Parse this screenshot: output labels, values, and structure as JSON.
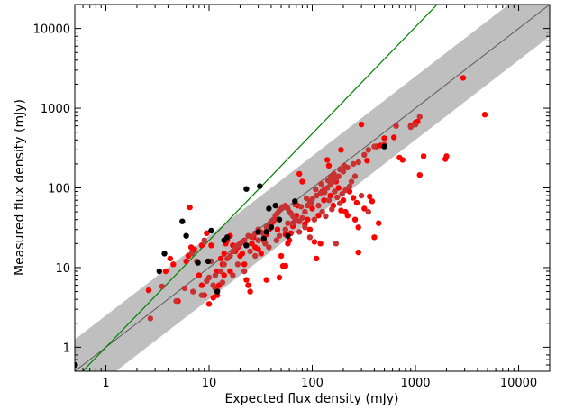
{
  "chart_data": {
    "type": "scatter",
    "title": "",
    "xlabel": "Expected flux density (mJy)",
    "ylabel": "Measured flux density (mJy)",
    "xscale": "log",
    "yscale": "log",
    "xlim": [
      0.5,
      20000
    ],
    "ylim": [
      0.5,
      20000
    ],
    "x_ticks": [
      {
        "value": 1,
        "label": "1"
      },
      {
        "value": 10,
        "label": "10"
      },
      {
        "value": 100,
        "label": "100"
      },
      {
        "value": 1000,
        "label": "1000"
      },
      {
        "value": 10000,
        "label": "10000"
      }
    ],
    "y_ticks": [
      {
        "value": 1,
        "label": "1"
      },
      {
        "value": 10,
        "label": "10"
      },
      {
        "value": 100,
        "label": "100"
      },
      {
        "value": 1000,
        "label": "1000"
      },
      {
        "value": 10000,
        "label": "10000"
      }
    ],
    "grid": false,
    "legend": "none",
    "band": {
      "lower_factor": 0.4,
      "upper_factor": 2.5,
      "color": "#bfbfbf"
    },
    "reference_lines": [
      {
        "slope": 1.0,
        "color": "#5a5a5a"
      },
      {
        "slope": 1.34,
        "color": "#008000"
      }
    ],
    "series": [
      {
        "color": "#ff0000",
        "points": [
          [
            2.6,
            5.2
          ],
          [
            3.8,
            9
          ],
          [
            4.2,
            13
          ],
          [
            4.5,
            11
          ],
          [
            5.0,
            3.8
          ],
          [
            6.0,
            12
          ],
          [
            6.3,
            14
          ],
          [
            6.5,
            57
          ],
          [
            6.7,
            18
          ],
          [
            7.0,
            16
          ],
          [
            7.2,
            17
          ],
          [
            8.0,
            8
          ],
          [
            8.5,
            6
          ],
          [
            9.0,
            4.5
          ],
          [
            9.5,
            27
          ],
          [
            10,
            3.5
          ],
          [
            10.5,
            19
          ],
          [
            11,
            4.2
          ],
          [
            11.5,
            5.5
          ],
          [
            12,
            4.5
          ],
          [
            12.5,
            6
          ],
          [
            13,
            13
          ],
          [
            13.5,
            11
          ],
          [
            14,
            8
          ],
          [
            14.5,
            20
          ],
          [
            15,
            22
          ],
          [
            16,
            25
          ],
          [
            17,
            19
          ],
          [
            18,
            16
          ],
          [
            19,
            18
          ],
          [
            20,
            14
          ],
          [
            21,
            15
          ],
          [
            22,
            11
          ],
          [
            23,
            7
          ],
          [
            24,
            6
          ],
          [
            25,
            5
          ],
          [
            26,
            20
          ],
          [
            27,
            24
          ],
          [
            28,
            18
          ],
          [
            30,
            17
          ],
          [
            32,
            15
          ],
          [
            34,
            22
          ],
          [
            36,
            26
          ],
          [
            38,
            30
          ],
          [
            40,
            34
          ],
          [
            42,
            38
          ],
          [
            44,
            41
          ],
          [
            46,
            30
          ],
          [
            48,
            7.5
          ],
          [
            50,
            14
          ],
          [
            52,
            10.5
          ],
          [
            55,
            10.5
          ],
          [
            58,
            20
          ],
          [
            60,
            22
          ],
          [
            62,
            27
          ],
          [
            65,
            33
          ],
          [
            68,
            38
          ],
          [
            70,
            45
          ],
          [
            72,
            60
          ],
          [
            75,
            150
          ],
          [
            80,
            120
          ],
          [
            85,
            35
          ],
          [
            90,
            40
          ],
          [
            95,
            30
          ],
          [
            100,
            55
          ],
          [
            105,
            21
          ],
          [
            110,
            13
          ],
          [
            115,
            45
          ],
          [
            120,
            20
          ],
          [
            125,
            90
          ],
          [
            130,
            70
          ],
          [
            140,
            225
          ],
          [
            145,
            190
          ],
          [
            150,
            80
          ],
          [
            160,
            60
          ],
          [
            170,
            120
          ],
          [
            180,
            100
          ],
          [
            190,
            52
          ],
          [
            200,
            70
          ],
          [
            210,
            50
          ],
          [
            220,
            45
          ],
          [
            230,
            90
          ],
          [
            250,
            75
          ],
          [
            260,
            40
          ],
          [
            270,
            65
          ],
          [
            280,
            32
          ],
          [
            300,
            625
          ],
          [
            320,
            55
          ],
          [
            340,
            220
          ],
          [
            360,
            78
          ],
          [
            380,
            68
          ],
          [
            400,
            24
          ],
          [
            420,
            330
          ],
          [
            440,
            36
          ],
          [
            460,
            340
          ],
          [
            500,
            420
          ],
          [
            620,
            430
          ],
          [
            700,
            240
          ],
          [
            750,
            225
          ],
          [
            900,
            600
          ],
          [
            1000,
            660
          ],
          [
            1050,
            680
          ],
          [
            1100,
            145
          ],
          [
            1200,
            250
          ],
          [
            1950,
            230
          ],
          [
            2000,
            250
          ],
          [
            2900,
            2400
          ],
          [
            4700,
            830
          ],
          [
            280,
            15.5
          ],
          [
            190,
            300
          ],
          [
            16,
            9
          ],
          [
            14,
            15
          ],
          [
            36,
            7
          ],
          [
            55,
            26
          ],
          [
            8.5,
            19
          ],
          [
            12,
            9
          ]
        ]
      },
      {
        "color": "#c83232",
        "points": [
          [
            2.7,
            2.3
          ],
          [
            3.5,
            5.8
          ],
          [
            4.8,
            3.8
          ],
          [
            5.8,
            5.5
          ],
          [
            7.0,
            5.0
          ],
          [
            8.5,
            4.5
          ],
          [
            9.5,
            6.8
          ],
          [
            10,
            7.5
          ],
          [
            11,
            6
          ],
          [
            12,
            5.2
          ],
          [
            13,
            9
          ],
          [
            14,
            11
          ],
          [
            15,
            13
          ],
          [
            16,
            14
          ],
          [
            17,
            16
          ],
          [
            18,
            18
          ],
          [
            19,
            19
          ],
          [
            20,
            20
          ],
          [
            21,
            21
          ],
          [
            22,
            22
          ],
          [
            24,
            25
          ],
          [
            26,
            24
          ],
          [
            28,
            27
          ],
          [
            30,
            30
          ],
          [
            32,
            28
          ],
          [
            34,
            26
          ],
          [
            36,
            32
          ],
          [
            38,
            34
          ],
          [
            40,
            38
          ],
          [
            42,
            40
          ],
          [
            44,
            45
          ],
          [
            46,
            48
          ],
          [
            48,
            52
          ],
          [
            50,
            55
          ],
          [
            52,
            58
          ],
          [
            55,
            60
          ],
          [
            58,
            55
          ],
          [
            60,
            50
          ],
          [
            62,
            48
          ],
          [
            65,
            44
          ],
          [
            68,
            42
          ],
          [
            70,
            40
          ],
          [
            75,
            38
          ],
          [
            80,
            42
          ],
          [
            85,
            50
          ],
          [
            90,
            60
          ],
          [
            95,
            66
          ],
          [
            100,
            72
          ],
          [
            110,
            80
          ],
          [
            120,
            86
          ],
          [
            130,
            95
          ],
          [
            140,
            100
          ],
          [
            150,
            110
          ],
          [
            160,
            120
          ],
          [
            170,
            130
          ],
          [
            180,
            140
          ],
          [
            200,
            160
          ],
          [
            220,
            180
          ],
          [
            250,
            200
          ],
          [
            280,
            210
          ],
          [
            320,
            260
          ],
          [
            350,
            300
          ],
          [
            400,
            330
          ],
          [
            500,
            350
          ],
          [
            650,
            600
          ],
          [
            900,
            580
          ],
          [
            1000,
            620
          ],
          [
            1100,
            780
          ],
          [
            25,
            16
          ],
          [
            35,
            20
          ],
          [
            45,
            22
          ],
          [
            55,
            30
          ],
          [
            65,
            36
          ],
          [
            75,
            28
          ],
          [
            85,
            32
          ],
          [
            95,
            24
          ],
          [
            105,
            40
          ],
          [
            115,
            60
          ],
          [
            125,
            50
          ],
          [
            135,
            44
          ],
          [
            145,
            70
          ],
          [
            155,
            54
          ],
          [
            165,
            90
          ],
          [
            175,
            76
          ],
          [
            185,
            64
          ],
          [
            195,
            84
          ],
          [
            210,
            94
          ],
          [
            230,
            104
          ],
          [
            240,
            120
          ],
          [
            260,
            140
          ],
          [
            170,
            20
          ],
          [
            300,
            80
          ],
          [
            350,
            50
          ],
          [
            9,
            22
          ],
          [
            10.5,
            12
          ],
          [
            11.5,
            8
          ],
          [
            13.5,
            6.5
          ],
          [
            17,
            8
          ],
          [
            19,
            11
          ],
          [
            22,
            9
          ],
          [
            28,
            14
          ],
          [
            30,
            22
          ],
          [
            38,
            18
          ],
          [
            48,
            25
          ],
          [
            58,
            36
          ],
          [
            68,
            62
          ],
          [
            78,
            58
          ],
          [
            88,
            74
          ],
          [
            98,
            64
          ],
          [
            108,
            96
          ],
          [
            122,
            112
          ],
          [
            132,
            88
          ],
          [
            142,
            124
          ],
          [
            152,
            138
          ],
          [
            162,
            150
          ],
          [
            186,
            170
          ],
          [
            204,
            190
          ],
          [
            0.5,
            0.6
          ],
          [
            6.8,
            15
          ],
          [
            7.6,
            12
          ]
        ]
      },
      {
        "color": "#000000",
        "points": [
          [
            3.3,
            9
          ],
          [
            3.7,
            15
          ],
          [
            5.5,
            38
          ],
          [
            6.0,
            25
          ],
          [
            7.8,
            11.5
          ],
          [
            9.8,
            12
          ],
          [
            10.5,
            29
          ],
          [
            12,
            5
          ],
          [
            14,
            22
          ],
          [
            15,
            24
          ],
          [
            23,
            97
          ],
          [
            23,
            19
          ],
          [
            31,
            105
          ],
          [
            34,
            23
          ],
          [
            36,
            28
          ],
          [
            38,
            55
          ],
          [
            44,
            60
          ],
          [
            48,
            40
          ],
          [
            58,
            25
          ],
          [
            68,
            68
          ],
          [
            500,
            330
          ],
          [
            0.5,
            0.6
          ],
          [
            30,
            28
          ],
          [
            40,
            32
          ]
        ]
      }
    ]
  }
}
